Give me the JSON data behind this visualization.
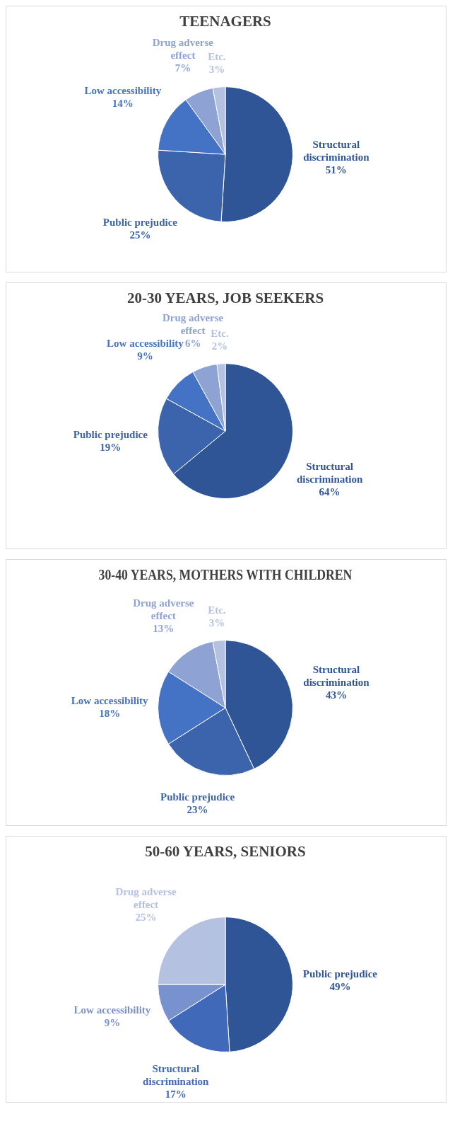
{
  "chart_data": [
    {
      "type": "pie",
      "title": "TEENAGERS",
      "categories": [
        "Structural discrimination",
        "Public prejudice",
        "Low accessibility",
        "Drug adverse effect",
        "Etc."
      ],
      "values": [
        51,
        25,
        14,
        7,
        3
      ],
      "value_labels": [
        "51%",
        "25%",
        "14%",
        "7%",
        "3%"
      ],
      "colors": [
        "#2f5597",
        "#3b64ad",
        "#4472c4",
        "#8fa2d4",
        "#b4c1e1"
      ],
      "legend": false
    },
    {
      "type": "pie",
      "title": "20-30 YEARS, JOB SEEKERS",
      "categories": [
        "Structural discrimination",
        "Public prejudice",
        "Low accessibility",
        "Drug adverse effect",
        "Etc."
      ],
      "values": [
        64,
        19,
        9,
        6,
        2
      ],
      "value_labels": [
        "64%",
        "19%",
        "9%",
        "6%",
        "2%"
      ],
      "colors": [
        "#2f5597",
        "#3b64ad",
        "#4472c4",
        "#8fa2d4",
        "#b4c1e1"
      ],
      "legend": false
    },
    {
      "type": "pie",
      "title": "30-40 YEARS, MOTHERS WITH CHILDREN",
      "categories": [
        "Structural discrimination",
        "Public prejudice",
        "Low accessibility",
        "Drug adverse effect",
        "Etc."
      ],
      "values": [
        43,
        23,
        18,
        13,
        3
      ],
      "value_labels": [
        "43%",
        "23%",
        "18%",
        "13%",
        "3%"
      ],
      "colors": [
        "#2f5597",
        "#3b64ad",
        "#4472c4",
        "#8fa2d4",
        "#b4c1e1"
      ],
      "legend": false
    },
    {
      "type": "pie",
      "title": "50-60 YEARS, SENIORS",
      "categories": [
        "Public prejudice",
        "Structural discrimination",
        "Low accessibility",
        "Drug adverse effect"
      ],
      "values": [
        49,
        17,
        9,
        25
      ],
      "value_labels": [
        "49%",
        "17%",
        "9%",
        "25%"
      ],
      "colors": [
        "#2f5597",
        "#4169b9",
        "#7891cf",
        "#b4c1e1"
      ],
      "legend": false
    }
  ]
}
